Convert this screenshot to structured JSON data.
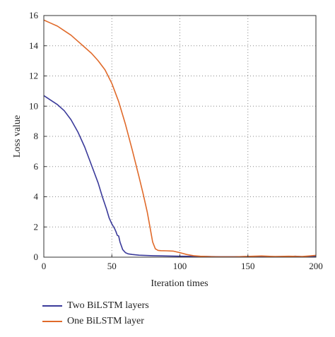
{
  "chart_data": {
    "type": "line",
    "xlabel": "Iteration times",
    "ylabel": "Loss value",
    "xlim": [
      0,
      200
    ],
    "ylim": [
      0,
      16
    ],
    "xticks": [
      0,
      50,
      100,
      150,
      200
    ],
    "yticks": [
      0,
      2,
      4,
      6,
      8,
      10,
      12,
      14,
      16
    ],
    "grid": "dotted",
    "legend_position": "below",
    "series": [
      {
        "name": "Two BiLSTM layers",
        "color": "#3a3a9a",
        "x": [
          0,
          5,
          10,
          15,
          20,
          25,
          30,
          35,
          40,
          43,
          46,
          48,
          50,
          52,
          53,
          54,
          55,
          56,
          58,
          60,
          62,
          65,
          70,
          80,
          90,
          100,
          110,
          120,
          130,
          140,
          150,
          160,
          170,
          180,
          185,
          190,
          200
        ],
        "y": [
          10.7,
          10.4,
          10.1,
          9.7,
          9.1,
          8.3,
          7.3,
          6.1,
          4.9,
          4.0,
          3.2,
          2.6,
          2.2,
          1.9,
          1.7,
          1.45,
          1.4,
          1.0,
          0.5,
          0.3,
          0.22,
          0.18,
          0.13,
          0.1,
          0.08,
          0.06,
          0.05,
          0.04,
          0.03,
          0.03,
          0.04,
          0.04,
          0.03,
          0.04,
          0.06,
          0.03,
          0.05
        ]
      },
      {
        "name": "One BiLSTM layer",
        "color": "#e06a2a",
        "x": [
          0,
          5,
          10,
          15,
          20,
          25,
          30,
          35,
          40,
          45,
          50,
          55,
          60,
          65,
          70,
          73,
          76,
          78,
          80,
          82,
          84,
          86,
          90,
          95,
          100,
          105,
          110,
          115,
          120,
          125,
          130,
          140,
          150,
          160,
          170,
          180,
          190,
          195,
          200
        ],
        "y": [
          15.7,
          15.5,
          15.3,
          15.0,
          14.7,
          14.3,
          13.9,
          13.5,
          13.0,
          12.4,
          11.5,
          10.3,
          8.8,
          7.1,
          5.3,
          4.2,
          3.0,
          2.0,
          1.0,
          0.55,
          0.45,
          0.43,
          0.42,
          0.4,
          0.3,
          0.18,
          0.1,
          0.06,
          0.04,
          0.03,
          0.02,
          0.02,
          0.05,
          0.08,
          0.04,
          0.06,
          0.04,
          0.08,
          0.12
        ]
      }
    ]
  }
}
